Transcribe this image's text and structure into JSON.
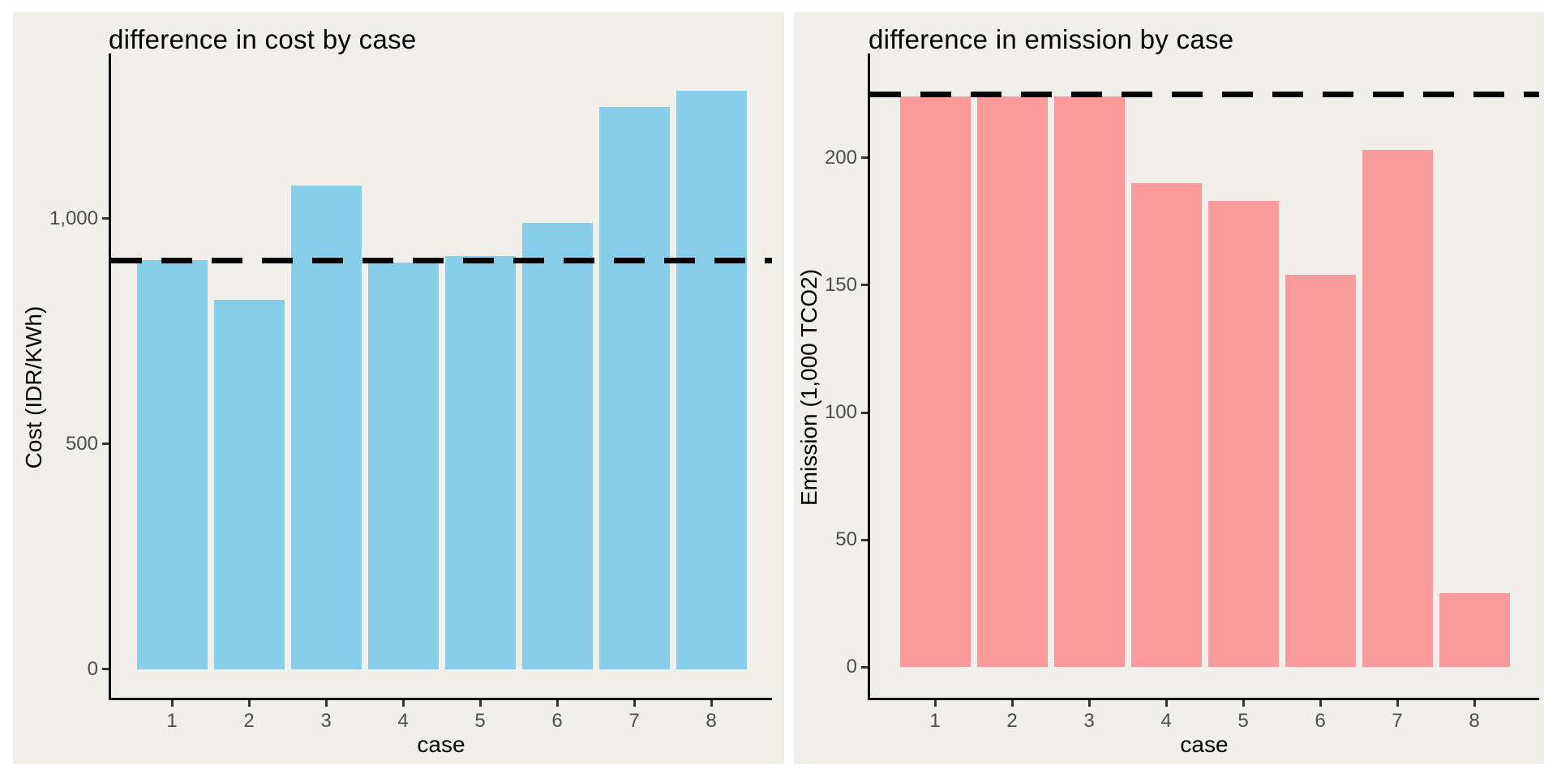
{
  "page": {
    "background_color": "#FFFFFF",
    "panel_background_color": "#F0EFE9",
    "axis_line_color": "#000000",
    "tick_label_color": "#4d4d4d",
    "reference_line_color": "#000000"
  },
  "chart_data": [
    {
      "type": "bar",
      "title": "difference in cost by case",
      "xlabel": "case",
      "ylabel": "Cost (IDR/KWh)",
      "categories": [
        "1",
        "2",
        "3",
        "4",
        "5",
        "6",
        "7",
        "8"
      ],
      "values": [
        907,
        820,
        1073,
        903,
        917,
        990,
        1248,
        1283
      ],
      "bar_color": "#87CEEB",
      "reference_line": {
        "value": 907,
        "style": "dashed",
        "color": "#000000"
      },
      "ylim": [
        -63,
        1366
      ],
      "yticks": [
        0,
        500,
        1000
      ],
      "ytick_labels": [
        "0",
        "500",
        "1,000"
      ],
      "grid": false,
      "legend": false
    },
    {
      "type": "bar",
      "title": "difference in emission by case",
      "xlabel": "case",
      "ylabel": "Emission (1,000 TCO2)",
      "categories": [
        "1",
        "2",
        "3",
        "4",
        "5",
        "6",
        "7",
        "8"
      ],
      "values": [
        224,
        224,
        224,
        190,
        183,
        154,
        203,
        29
      ],
      "bar_color": "#FB9A9A",
      "reference_line": {
        "value": 225,
        "style": "dashed",
        "color": "#000000"
      },
      "ylim": [
        -12,
        241
      ],
      "yticks": [
        0,
        50,
        100,
        150,
        200
      ],
      "ytick_labels": [
        "0",
        "50",
        "100",
        "150",
        "200"
      ],
      "grid": false,
      "legend": false
    }
  ]
}
